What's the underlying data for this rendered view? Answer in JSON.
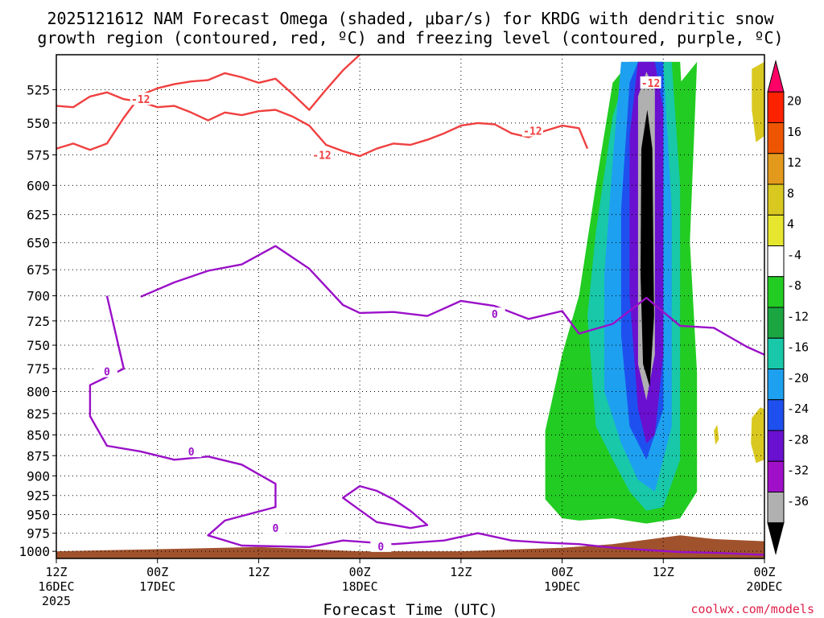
{
  "chart_data": {
    "type": "heatmap",
    "title_line1": "2025121612 NAM Forecast Omega (shaded, μbar/s) for KRDG with dendritic snow",
    "title_line2": "growth region (contoured, red, ºC) and freezing level (contoured, purple, ºC)",
    "xlabel": "Forecast Time (UTC)",
    "credit": "coolwx.com/models",
    "x_range_hours": [
      0,
      84
    ],
    "x_ticks": [
      {
        "hour": 0,
        "l1": "12Z",
        "l2": "16DEC",
        "l3": "2025"
      },
      {
        "hour": 12,
        "l1": "00Z",
        "l2": "17DEC",
        "l3": ""
      },
      {
        "hour": 24,
        "l1": "12Z",
        "l2": "",
        "l3": ""
      },
      {
        "hour": 36,
        "l1": "00Z",
        "l2": "18DEC",
        "l3": ""
      },
      {
        "hour": 48,
        "l1": "12Z",
        "l2": "",
        "l3": ""
      },
      {
        "hour": 60,
        "l1": "00Z",
        "l2": "19DEC",
        "l3": ""
      },
      {
        "hour": 72,
        "l1": "12Z",
        "l2": "",
        "l3": ""
      },
      {
        "hour": 84,
        "l1": "00Z",
        "l2": "20DEC",
        "l3": ""
      }
    ],
    "y_range_hpa": [
      500,
      1010
    ],
    "y_ticks": [
      "525",
      "550",
      "575",
      "600",
      "625",
      "650",
      "675",
      "700",
      "725",
      "750",
      "775",
      "800",
      "825",
      "850",
      "875",
      "900",
      "925",
      "950",
      "975",
      "1000"
    ],
    "colorbar": {
      "labels": [
        "20",
        "16",
        "12",
        "8",
        "4",
        "-4",
        "-8",
        "-12",
        "-16",
        "-20",
        "-24",
        "-28",
        "-32",
        "-36"
      ],
      "colors": [
        "#ff0066",
        "#ff2200",
        "#ee5500",
        "#e39a1c",
        "#d9c820",
        "#e6e62e",
        "#ffffff",
        "#22cc22",
        "#1ca642",
        "#18c8a8",
        "#1ea0f0",
        "#1e50f0",
        "#6a10d0",
        "#a010c8",
        "#b0b0b0",
        "#000000"
      ]
    },
    "contour_labels": {
      "dgz": "-12",
      "freezing": "0"
    },
    "series": [
      {
        "name": "dgz_top",
        "color": "#f04040",
        "points": [
          [
            0,
            537
          ],
          [
            2,
            538
          ],
          [
            4,
            530
          ],
          [
            6,
            527
          ],
          [
            8,
            532
          ],
          [
            10,
            534
          ],
          [
            12,
            538
          ],
          [
            14,
            537
          ],
          [
            16,
            542
          ],
          [
            18,
            548
          ],
          [
            20,
            542
          ],
          [
            22,
            544
          ],
          [
            24,
            541
          ],
          [
            26,
            540
          ],
          [
            28,
            545
          ],
          [
            30,
            552
          ],
          [
            32,
            567
          ],
          [
            34,
            572
          ],
          [
            36,
            576
          ],
          [
            38,
            570
          ],
          [
            40,
            566
          ],
          [
            42,
            567
          ],
          [
            44,
            563
          ],
          [
            46,
            558
          ],
          [
            48,
            552
          ],
          [
            50,
            550
          ],
          [
            52,
            551
          ],
          [
            54,
            558
          ],
          [
            56,
            561
          ],
          [
            58,
            556
          ],
          [
            60,
            552
          ],
          [
            62,
            554
          ],
          [
            63,
            570
          ]
        ]
      },
      {
        "name": "dgz_bottom",
        "color": "#f04040",
        "points": [
          [
            0,
            570
          ],
          [
            2,
            566
          ],
          [
            4,
            571
          ],
          [
            6,
            566
          ],
          [
            8,
            546
          ],
          [
            10,
            529
          ],
          [
            12,
            524
          ],
          [
            14,
            521
          ],
          [
            16,
            519
          ],
          [
            18,
            518
          ],
          [
            20,
            513
          ],
          [
            22,
            516
          ],
          [
            24,
            520
          ],
          [
            26,
            517
          ],
          [
            28,
            528
          ],
          [
            30,
            540
          ],
          [
            32,
            525
          ],
          [
            34,
            511
          ],
          [
            36,
            500
          ]
        ]
      },
      {
        "name": "freezing_level",
        "color": "#9a10c8",
        "points": [
          [
            6,
            700
          ],
          [
            8,
            775
          ],
          [
            4,
            793
          ],
          [
            4,
            828
          ],
          [
            6,
            863
          ],
          [
            10,
            870
          ],
          [
            14,
            880
          ],
          [
            18,
            876
          ],
          [
            22,
            886
          ],
          [
            26,
            910
          ],
          [
            26,
            940
          ],
          [
            20,
            958
          ],
          [
            18,
            978
          ],
          [
            22,
            992
          ],
          [
            30,
            994
          ],
          [
            34,
            985
          ],
          [
            40,
            990
          ],
          [
            46,
            985
          ],
          [
            50,
            975
          ],
          [
            54,
            985
          ],
          [
            58,
            988
          ],
          [
            62,
            990
          ],
          [
            66,
            995
          ],
          [
            70,
            998
          ],
          [
            74,
            1001
          ],
          [
            78,
            1002
          ],
          [
            82,
            1004
          ],
          [
            84,
            1005
          ]
        ]
      },
      {
        "name": "freezing_level_upper",
        "color": "#9a10c8",
        "points": [
          [
            10,
            701
          ],
          [
            14,
            687
          ],
          [
            18,
            676
          ],
          [
            22,
            670
          ],
          [
            26,
            653
          ],
          [
            30,
            674
          ],
          [
            34,
            709
          ],
          [
            36,
            717
          ],
          [
            40,
            716
          ],
          [
            44,
            720
          ],
          [
            48,
            705
          ],
          [
            52,
            710
          ],
          [
            56,
            723
          ],
          [
            60,
            715
          ],
          [
            62,
            738
          ],
          [
            66,
            728
          ],
          [
            70,
            702
          ],
          [
            72,
            716
          ],
          [
            74,
            730
          ],
          [
            76,
            731
          ],
          [
            78,
            732
          ],
          [
            80,
            742
          ],
          [
            82,
            752
          ],
          [
            84,
            760
          ]
        ]
      },
      {
        "name": "freezing_level_loop",
        "color": "#9a10c8",
        "points": [
          [
            36,
            913
          ],
          [
            38,
            919
          ],
          [
            40,
            930
          ],
          [
            42,
            945
          ],
          [
            44,
            964
          ],
          [
            42,
            968
          ],
          [
            38,
            960
          ],
          [
            36,
            944
          ],
          [
            34,
            928
          ],
          [
            36,
            913
          ]
        ]
      }
    ],
    "omega_regions": [
      {
        "value": -4,
        "color": "#22cc22",
        "points": [
          [
            58,
            845
          ],
          [
            60,
            760
          ],
          [
            62,
            700
          ],
          [
            64,
            600
          ],
          [
            66,
            520
          ],
          [
            68,
            505
          ],
          [
            70,
            505
          ],
          [
            74,
            505
          ],
          [
            76,
            780
          ],
          [
            76,
            920
          ],
          [
            74,
            955
          ],
          [
            70,
            962
          ],
          [
            66,
            955
          ],
          [
            62,
            958
          ],
          [
            60,
            955
          ],
          [
            58,
            930
          ],
          [
            58,
            860
          ]
        ]
      },
      {
        "value": -4,
        "color": "#22cc22",
        "points": [
          [
            74,
            600
          ],
          [
            74,
            520
          ],
          [
            76,
            505
          ],
          [
            75,
            680
          ]
        ]
      },
      {
        "value": -12,
        "color": "#18c8a8",
        "points": [
          [
            63,
            720
          ],
          [
            64,
            640
          ],
          [
            66,
            545
          ],
          [
            68,
            505
          ],
          [
            71,
            505
          ],
          [
            73,
            505
          ],
          [
            74,
            600
          ],
          [
            74,
            880
          ],
          [
            72,
            940
          ],
          [
            70,
            945
          ],
          [
            68,
            920
          ],
          [
            66,
            880
          ],
          [
            64,
            840
          ]
        ]
      },
      {
        "value": -16,
        "color": "#1ea0f0",
        "points": [
          [
            65,
            680
          ],
          [
            66,
            580
          ],
          [
            67,
            505
          ],
          [
            72,
            505
          ],
          [
            73,
            620
          ],
          [
            73,
            840
          ],
          [
            71,
            920
          ],
          [
            69,
            905
          ],
          [
            67,
            860
          ],
          [
            65,
            800
          ]
        ]
      },
      {
        "value": -20,
        "color": "#1e50f0",
        "points": [
          [
            67,
            620
          ],
          [
            68,
            520
          ],
          [
            69,
            505
          ],
          [
            72,
            505
          ],
          [
            72,
            700
          ],
          [
            72,
            820
          ],
          [
            70,
            880
          ],
          [
            68,
            840
          ],
          [
            67,
            740
          ]
        ]
      },
      {
        "value": -28,
        "color": "#6a10d0",
        "points": [
          [
            68,
            560
          ],
          [
            69,
            505
          ],
          [
            71,
            505
          ],
          [
            72,
            540
          ],
          [
            72,
            760
          ],
          [
            71,
            850
          ],
          [
            70,
            860
          ],
          [
            69,
            820
          ],
          [
            68,
            700
          ]
        ]
      },
      {
        "value": -32,
        "color": "#b0b0b0",
        "points": [
          [
            69,
            530
          ],
          [
            70,
            512
          ],
          [
            71,
            525
          ],
          [
            71,
            760
          ],
          [
            70,
            810
          ],
          [
            69,
            770
          ]
        ]
      },
      {
        "value": -36,
        "color": "#000000",
        "points": [
          [
            69.4,
            570
          ],
          [
            70.1,
            540
          ],
          [
            70.7,
            570
          ],
          [
            70.9,
            720
          ],
          [
            70.4,
            795
          ],
          [
            69.6,
            770
          ],
          [
            69.3,
            680
          ]
        ]
      },
      {
        "value": 4,
        "color": "#d9c820",
        "points": [
          [
            82.5,
            510
          ],
          [
            84,
            505
          ],
          [
            84,
            560
          ],
          [
            83,
            565
          ],
          [
            82.5,
            540
          ]
        ]
      },
      {
        "value": 4,
        "color": "#d9c820",
        "points": [
          [
            82.5,
            830
          ],
          [
            83.5,
            818
          ],
          [
            84,
            820
          ],
          [
            84,
            880
          ],
          [
            83,
            884
          ],
          [
            82.4,
            860
          ]
        ]
      },
      {
        "value": 4,
        "color": "#d9c820",
        "points": [
          [
            78,
            845
          ],
          [
            78.4,
            838
          ],
          [
            78.6,
            855
          ],
          [
            78.2,
            862
          ]
        ]
      }
    ],
    "terrain": {
      "color": "#a0522d",
      "points": [
        [
          0,
          1000
        ],
        [
          12,
          997
        ],
        [
          24,
          994
        ],
        [
          36,
          1000
        ],
        [
          48,
          1000
        ],
        [
          60,
          995
        ],
        [
          66,
          990
        ],
        [
          70,
          984
        ],
        [
          74,
          978
        ],
        [
          78,
          983
        ],
        [
          84,
          986
        ]
      ]
    }
  }
}
